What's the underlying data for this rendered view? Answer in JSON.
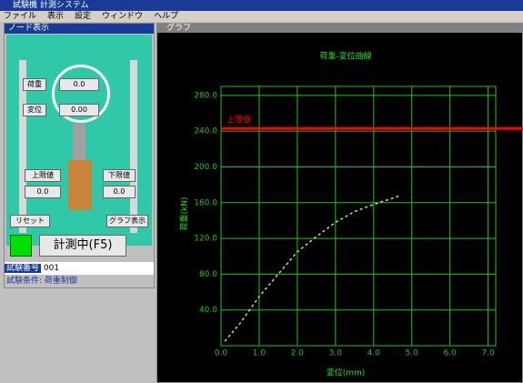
{
  "window": {
    "title": "試験機 計測システム",
    "menu": [
      "ファイル",
      "表示",
      "設定",
      "ウィンドウ",
      "ヘルプ"
    ]
  },
  "left_panel": {
    "title": "ノード表示",
    "load_label": "荷重",
    "load_value": "0.0",
    "disp_label": "変位",
    "disp_value": "0.00",
    "left_box": "上限値",
    "right_box": "下限値",
    "left_value": "0.0",
    "right_value": "0.0",
    "btn_left": "リセット",
    "btn_right": "グラフ表示",
    "main_button": "計測中(F5)",
    "status_label": "試験番号",
    "status_value": "001",
    "footer": "試験条件: 荷重制御"
  },
  "chart_panel": {
    "title": "グラフ"
  },
  "chart_data": {
    "type": "line",
    "title": "荷重-変位曲線",
    "x_label": "変位(mm)",
    "y_label": "荷重(kN)",
    "series": [
      {
        "name": "荷重",
        "color": "#e0e040",
        "x": [
          0.1,
          0.5,
          1.0,
          1.5,
          2.0,
          2.5,
          3.0,
          3.5,
          4.0,
          4.5,
          4.7
        ],
        "values": [
          5,
          25,
          55,
          80,
          105,
          122,
          138,
          150,
          158,
          165,
          168
        ]
      }
    ],
    "threshold": {
      "label": "上限値",
      "value": 243,
      "color": "#ff0000"
    },
    "xlim": [
      0,
      7.2
    ],
    "ylim": [
      0,
      290
    ],
    "xticks": [
      {
        "value": 0,
        "label": "0.0"
      },
      {
        "value": 1,
        "label": "1.0"
      },
      {
        "value": 2,
        "label": "2.0"
      },
      {
        "value": 3,
        "label": "3.0"
      },
      {
        "value": 4,
        "label": "4.0"
      },
      {
        "value": 5,
        "label": "5.0"
      },
      {
        "value": 6,
        "label": "6.0"
      },
      {
        "value": 7,
        "label": "7.0"
      }
    ],
    "yticks": [
      {
        "value": 40,
        "label": "40.0"
      },
      {
        "value": 80,
        "label": "80.0"
      },
      {
        "value": 120,
        "label": "120.0"
      },
      {
        "value": 160,
        "label": "160.0"
      },
      {
        "value": 200,
        "label": "200.0"
      },
      {
        "value": 240,
        "label": "240.0"
      },
      {
        "value": 280,
        "label": "280.0"
      }
    ],
    "grid": true,
    "grid_color": "#20c020"
  }
}
